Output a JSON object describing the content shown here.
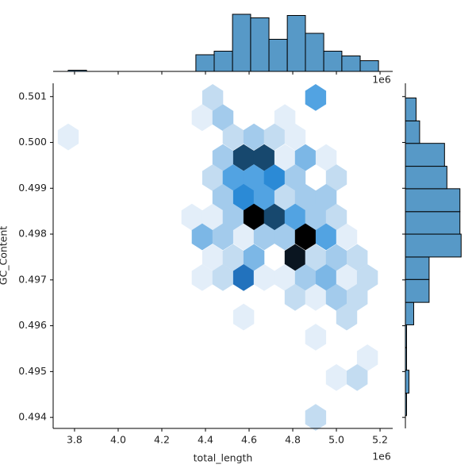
{
  "chart_data": {
    "type": "hexbin",
    "xlabel": "total_length",
    "ylabel": "GC_Content",
    "offset_label": "1e6",
    "xlim": [
      3.702,
      5.258
    ],
    "ylim": [
      0.49376,
      0.50129
    ],
    "xticks": [
      3.8,
      {
        "value": 4,
        "label": "4.0"
      },
      4.2,
      4.4,
      4.6,
      4.8,
      {
        "value": 5,
        "label": "5.0"
      },
      5.2
    ],
    "yticks": [
      0.494,
      0.495,
      0.496,
      0.497,
      0.498,
      0.499,
      {
        "value": 0.5,
        "label": "0.500"
      },
      0.501
    ],
    "colormap": [
      "#e3eef9",
      "#c3dcf1",
      "#a3cbec",
      "#7cb7e6",
      "#52a3e2",
      "#2b8ad6",
      "#2272bd",
      "#17486e",
      "#0a1520",
      "#000000"
    ],
    "hexbins": {
      "x": [
        4.433,
        4.905,
        4.385,
        4.48,
        4.764,
        3.771,
        4.527,
        4.622,
        4.716,
        4.811,
        4.48,
        4.575,
        4.669,
        4.764,
        4.858,
        4.953,
        4.433,
        4.527,
        4.622,
        4.716,
        4.811,
        5.0,
        4.48,
        4.575,
        4.669,
        4.764,
        4.858,
        4.953,
        4.338,
        4.433,
        4.527,
        4.622,
        4.716,
        4.811,
        4.905,
        5.0,
        4.385,
        4.48,
        4.575,
        4.669,
        4.764,
        4.858,
        4.953,
        5.047,
        4.433,
        4.527,
        4.622,
        4.811,
        4.905,
        5.0,
        5.095,
        4.385,
        4.48,
        4.575,
        4.669,
        4.764,
        4.858,
        4.953,
        5.047,
        5.142,
        4.811,
        4.905,
        5.0,
        5.095,
        4.575,
        5.047,
        4.905,
        5.142,
        5.0,
        5.095,
        4.905
      ],
      "y": [
        0.50098,
        0.50098,
        0.50054,
        0.50054,
        0.50054,
        0.50012,
        0.50012,
        0.50012,
        0.50012,
        0.50012,
        0.49967,
        0.49967,
        0.49967,
        0.49967,
        0.49967,
        0.49967,
        0.49923,
        0.49923,
        0.49923,
        0.49923,
        0.49923,
        0.49923,
        0.4988,
        0.4988,
        0.4988,
        0.4988,
        0.4988,
        0.4988,
        0.49837,
        0.49837,
        0.49837,
        0.49837,
        0.49837,
        0.49837,
        0.49837,
        0.49837,
        0.49794,
        0.49794,
        0.49794,
        0.49794,
        0.49794,
        0.49794,
        0.49794,
        0.49794,
        0.49749,
        0.49749,
        0.49749,
        0.49749,
        0.49749,
        0.49749,
        0.49749,
        0.49705,
        0.49705,
        0.49705,
        0.49705,
        0.49705,
        0.49705,
        0.49705,
        0.49705,
        0.49705,
        0.49662,
        0.49662,
        0.49662,
        0.49662,
        0.49619,
        0.49619,
        0.49575,
        0.4953,
        0.49487,
        0.49487,
        0.494
      ],
      "counts": [
        2,
        5,
        1,
        3,
        1,
        1,
        2,
        3,
        2,
        1,
        3,
        8,
        8,
        1,
        4,
        1,
        2,
        5,
        5,
        6,
        3,
        2,
        3,
        6,
        5,
        2,
        3,
        3,
        1,
        1,
        3,
        10,
        8,
        5,
        3,
        2,
        4,
        3,
        1,
        3,
        3,
        10,
        5,
        1,
        1,
        2,
        4,
        9,
        2,
        3,
        2,
        1,
        2,
        7,
        1,
        1,
        3,
        4,
        1,
        2,
        2,
        1,
        3,
        2,
        1,
        2,
        1,
        1,
        1,
        2,
        2
      ]
    },
    "hist_color": "#5799c7",
    "marginal_x": {
      "bins": [
        3.771,
        3.855,
        3.938,
        4.022,
        4.105,
        4.189,
        4.273,
        4.356,
        4.44,
        4.524,
        4.607,
        4.691,
        4.775,
        4.858,
        4.942,
        5.025,
        5.109,
        5.193
      ],
      "counts": [
        1,
        0,
        0,
        0,
        0,
        0,
        0,
        14,
        17,
        48,
        45,
        27,
        47,
        32,
        17,
        13,
        9
      ],
      "lim": [
        0,
        50
      ]
    },
    "marginal_y": {
      "bins": [
        0.49404,
        0.49453,
        0.49503,
        0.49552,
        0.49602,
        0.49651,
        0.49701,
        0.4975,
        0.498,
        0.49849,
        0.49899,
        0.49948,
        0.49998,
        0.50047,
        0.50097
      ],
      "counts": [
        1,
        3,
        1,
        1,
        7,
        20,
        20,
        47,
        46,
        46,
        35,
        33,
        12,
        9
      ],
      "lim": [
        0,
        47.5
      ]
    }
  }
}
